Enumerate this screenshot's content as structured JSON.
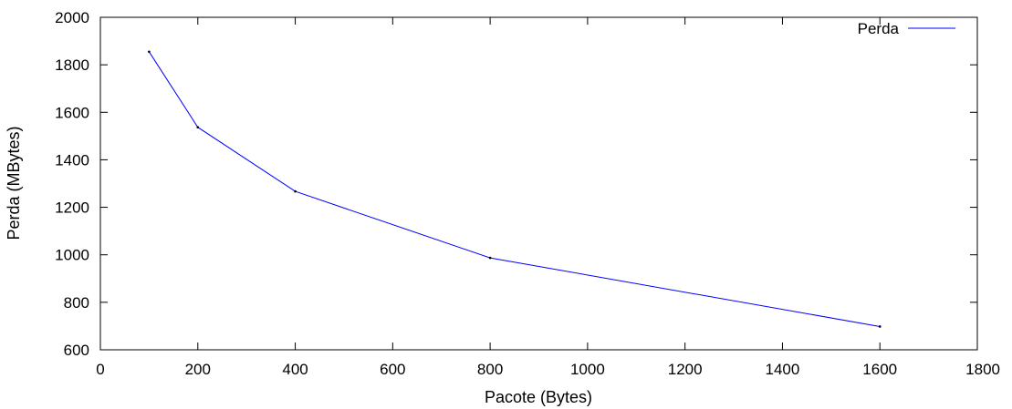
{
  "chart_data": {
    "type": "line",
    "xlabel": "Pacote (Bytes)",
    "ylabel": "Perda (MBytes)",
    "xlim": [
      0,
      1800
    ],
    "ylim": [
      600,
      2000
    ],
    "xticks": [
      0,
      200,
      400,
      600,
      800,
      1000,
      1200,
      1400,
      1600,
      1800
    ],
    "yticks": [
      600,
      800,
      1000,
      1200,
      1400,
      1600,
      1800,
      2000
    ],
    "grid": false,
    "legend_position": "top-right",
    "series": [
      {
        "name": "Perda",
        "color": "#0000ff",
        "x": [
          100,
          200,
          400,
          800,
          1600
        ],
        "y": [
          1855,
          1537,
          1267,
          987,
          698
        ]
      }
    ]
  }
}
